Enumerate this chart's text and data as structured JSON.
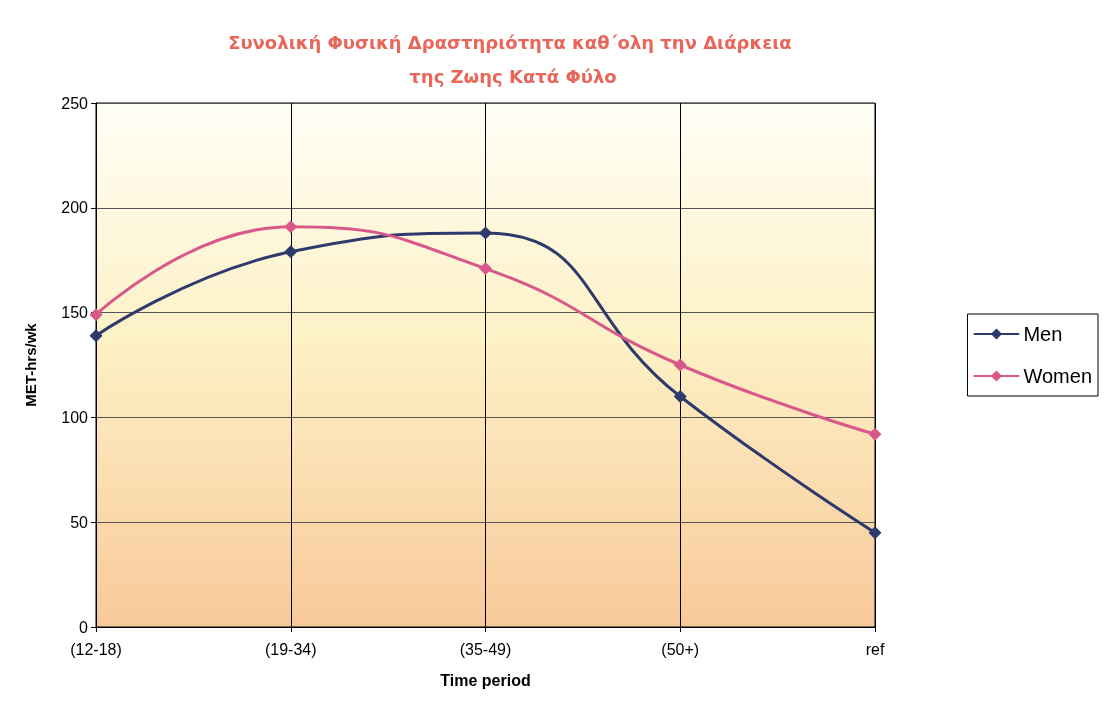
{
  "chart_data": {
    "type": "line",
    "title": "Συνολική Φυσική Δραστηριότητα καθ΄ολη την Διάρκεια της Ζωης Κατά Φύλο",
    "xlabel": "Time period",
    "ylabel": "MET-hrs/wk",
    "categories": [
      "(12-18)",
      "(19-34)",
      "(35-49)",
      "(50+)",
      "ref"
    ],
    "series": [
      {
        "name": "Men",
        "color": "#2e3a6b",
        "values": [
          139,
          179,
          188,
          110,
          45
        ]
      },
      {
        "name": "Women",
        "color": "#d9588a",
        "values": [
          149,
          191,
          171,
          125,
          92
        ]
      }
    ],
    "ylim": [
      0,
      250
    ],
    "yticks": [
      0,
      50,
      100,
      150,
      200,
      250
    ],
    "grid": true,
    "legend": "right",
    "marker": "diamond",
    "line_style": "solid"
  }
}
